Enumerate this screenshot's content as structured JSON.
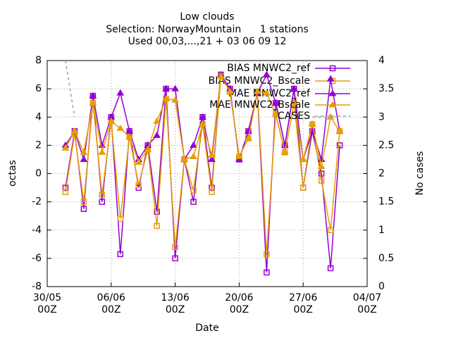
{
  "chart_data": {
    "type": "line",
    "title": "Low clouds",
    "subtitle": "Selection: NorwayMountain      1 stations",
    "subtitle2": "Used 00,03,...,21 + 03 06 09 12",
    "xlabel": "Date",
    "ylabel": "octas",
    "y2label": "No cases",
    "x": [
      2,
      3,
      4,
      5,
      6,
      7,
      8,
      9,
      10,
      11,
      12,
      13,
      14,
      15,
      16,
      17,
      18,
      19,
      20,
      21,
      22,
      23,
      24,
      25,
      26,
      27,
      28,
      29,
      30,
      31,
      32
    ],
    "series": [
      {
        "name": "BIAS MNWC2_ref",
        "color": "#9400d3",
        "marker": "square",
        "values": [
          -1,
          3,
          -2.5,
          5.5,
          -2,
          4,
          -5.7,
          3,
          -1,
          2,
          -2.7,
          6,
          -6,
          1,
          -2,
          4,
          -1,
          7,
          6,
          1,
          3,
          5.7,
          -7,
          5,
          2,
          6,
          -1,
          3,
          0,
          -6.7,
          2
        ]
      },
      {
        "name": "BIAS MNWC2_Bscale",
        "color": "#e69f00",
        "marker": "square",
        "values": [
          -1.3,
          2.8,
          -2,
          5,
          -1.5,
          3.7,
          -3.2,
          2.6,
          -0.8,
          1.7,
          -3.7,
          5.3,
          -5.2,
          1,
          -1.2,
          3.5,
          -1.3,
          6.9,
          5.8,
          1.2,
          2.5,
          5.8,
          -5.7,
          4.2,
          1.5,
          5,
          -1,
          3.5,
          -0.5,
          -4,
          3
        ]
      },
      {
        "name": "MAE MNWC2_ref",
        "color": "#9400d3",
        "marker": "triangle",
        "values": [
          2,
          3,
          1,
          5.5,
          2,
          4,
          5.7,
          3,
          1,
          2,
          2.7,
          6,
          6,
          1,
          2,
          4,
          1,
          7,
          6,
          1,
          3,
          5.7,
          7,
          5,
          2,
          6,
          1,
          3,
          1,
          6.7,
          3
        ]
      },
      {
        "name": "MAE MNWC2_Bscale",
        "color": "#e69f00",
        "marker": "triangle",
        "values": [
          1.8,
          3,
          1.5,
          5,
          1.5,
          3.7,
          3.2,
          2.6,
          0.8,
          1.7,
          3.7,
          5.3,
          5.2,
          1,
          1.2,
          3.5,
          1.3,
          6.9,
          5.8,
          1.2,
          2.5,
          5.8,
          5.7,
          4.2,
          1.5,
          5,
          1,
          3.5,
          0.5,
          4,
          3
        ]
      },
      {
        "name": "CASES",
        "color": "#a0a0a0",
        "axis": "y2",
        "dashed": true,
        "values": [
          4,
          3,
          null,
          null,
          null,
          null,
          null,
          null,
          null,
          null,
          null,
          null,
          null,
          null,
          null,
          null,
          null,
          null,
          null,
          null,
          null,
          null,
          null,
          null,
          null,
          null,
          null,
          3,
          3,
          3,
          3
        ]
      }
    ],
    "xlim": [
      0,
      35
    ],
    "xticks": [
      {
        "value": 0,
        "label": "30/05 00Z"
      },
      {
        "value": 7,
        "label": "06/06 00Z"
      },
      {
        "value": 14,
        "label": "13/06 00Z"
      },
      {
        "value": 21,
        "label": "20/06 00Z"
      },
      {
        "value": 28,
        "label": "27/06 00Z"
      },
      {
        "value": 35,
        "label": "04/07 00Z"
      }
    ],
    "ylim": [
      -8,
      8
    ],
    "yticks": [
      -8,
      -6,
      -4,
      -2,
      0,
      2,
      4,
      6,
      8
    ],
    "y2lim": [
      0,
      4
    ],
    "y2ticks": [
      0,
      0.5,
      1,
      1.5,
      2,
      2.5,
      3,
      3.5,
      4
    ],
    "grid": true,
    "legend": "top-right"
  }
}
